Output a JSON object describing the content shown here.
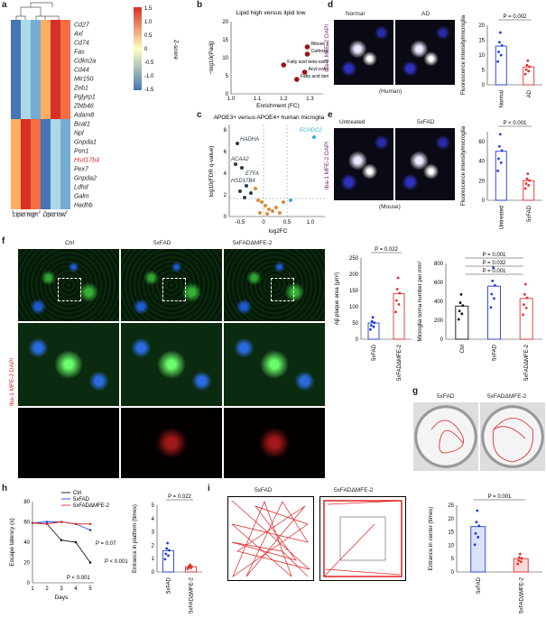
{
  "panel_letters": [
    "a",
    "b",
    "c",
    "d",
    "e",
    "f",
    "g",
    "h",
    "i"
  ],
  "heatmap": {
    "genes": [
      "Cd27",
      "Axl",
      "Cd74",
      "Fas",
      "Cdkn2a",
      "Cd44",
      "Mir150",
      "Zeb1",
      "Pglyrp1",
      "Zbtb46",
      "Adam8",
      "Bcat1",
      "Npl",
      "Gnpda1",
      "Pon1",
      "Hsd17b4",
      "Pex7",
      "Gnpda2",
      "Ldhd",
      "Galm",
      "Hadhb"
    ],
    "highlight_gene": "Hsd17b4",
    "highlight_color": "#d62728",
    "group_labels": [
      "Lipid high",
      "Lipid low"
    ],
    "colorbar_label": "Z-score",
    "colorbar_ticks": [
      "1.5",
      "1.0",
      "0.5",
      "0",
      "-0.5",
      "-1.0",
      "-1.5"
    ]
  },
  "panel_b": {
    "title": "Lipid high versus lipid low",
    "xlabel": "Enrichment (FC)",
    "ylabel": "−log10(Padj)",
    "xticks": [
      "1.0",
      "1.1",
      "1.2",
      "1.3"
    ],
    "yticks": [
      "0",
      "5",
      "10",
      "15",
      "20"
    ],
    "points": [
      {
        "x": 1.29,
        "y": 13,
        "label": "Ribose phosphate metabolic process"
      },
      {
        "x": 1.29,
        "y": 11,
        "label": "Carboxylic acid catabolic process"
      },
      {
        "x": 1.2,
        "y": 8,
        "label": "Fatty acid beta-oxidation"
      },
      {
        "x": 1.28,
        "y": 6,
        "label": "Acyl-coA metabolic process"
      },
      {
        "x": 1.25,
        "y": 4,
        "label": "Fatty acid derivative metabolic process"
      }
    ]
  },
  "panel_c": {
    "title": "APOE3+ versus APOE4+ human microglia",
    "xlabel": "log2FC",
    "ylabel": "log10(FDR q-value)",
    "xticks": [
      "-0.5",
      "0",
      "0.5",
      "1.0"
    ],
    "yticks": [
      "0",
      "2",
      "4",
      "6",
      "8"
    ],
    "labels": [
      "HADHA",
      "ACAA2",
      "ETFA",
      "HSD17B4",
      "ECHDC2"
    ]
  },
  "panel_d": {
    "conditions": [
      "Normal",
      "AD"
    ],
    "caption": "(Human)",
    "stain": "Iba-1 MFE-2 DAPI",
    "ylabel": "Fluorescence intensity/microglia",
    "pvalue": "P = 0.002",
    "yticks": [
      "0",
      "5",
      "10",
      "15",
      "20"
    ]
  },
  "panel_e": {
    "conditions": [
      "Untreated",
      "5xFAD"
    ],
    "caption": "(Mouse)",
    "stain": "Iba-1 MFE-2 DAPI",
    "ylabel": "Fluorescence intensity/microglia",
    "pvalue": "P < 0.001",
    "yticks": [
      "0",
      "20",
      "40",
      "60"
    ]
  },
  "panel_f": {
    "conditions": [
      "Ctrl",
      "5xFAD",
      "5xFADΔMFE-2"
    ],
    "stain": "Iba-1 MFE-2 DAPI",
    "plaque": {
      "ylabel": "Aβ plaque area (µm²)",
      "pvalue": "P = 0.022",
      "yticks": [
        "0",
        "50",
        "100",
        "150",
        "200",
        "250"
      ],
      "groups": [
        "5xFAD",
        "5xFADΔMFE-2"
      ]
    },
    "soma": {
      "ylabel": "Microglia soma number per mm²",
      "pvalues": [
        "P = 0.001",
        "P = 0.032",
        "P = 0.001"
      ],
      "yticks": [
        "0",
        "200",
        "400",
        "600",
        "800"
      ],
      "groups": [
        "Ctrl",
        "5xFAD",
        "5xFADΔMFE-2"
      ]
    }
  },
  "panel_g": {
    "conditions": [
      "5xFAD",
      "5xFADΔMFE-2"
    ]
  },
  "panel_h": {
    "legend": [
      "Ctrl",
      "5xFAD",
      "5xFADΔMFE-2"
    ],
    "ylabel": "Escape latency (s)",
    "xlabel": "Days",
    "xticks": [
      "1",
      "2",
      "3",
      "4",
      "5"
    ],
    "yticks": [
      "0",
      "20",
      "40",
      "60",
      "80"
    ],
    "pvalues": [
      "P = 0.07",
      "P < 0.001",
      "P < 0.001"
    ],
    "bar": {
      "ylabel": "Entrance in platform (times)",
      "pvalue": "P = 0.022",
      "yticks": [
        "0",
        "1",
        "2",
        "3",
        "4",
        "5"
      ],
      "groups": [
        "5xFAD",
        "5xFADΔMFE-2"
      ]
    }
  },
  "panel_i": {
    "conditions": [
      "5xFAD",
      "5xFADΔMFE-2"
    ],
    "bar": {
      "ylabel": "Entrance in center (times)",
      "pvalue": "P = 0.001",
      "yticks": [
        "0",
        "5",
        "10",
        "15",
        "20",
        "25"
      ],
      "groups": [
        "5xFAD",
        "5xFADΔMFE-2"
      ]
    }
  },
  "colors": {
    "ctrl": "#111111",
    "fad": "#1f3fd6",
    "mfe": "#e03030"
  },
  "chart_data": [
    {
      "type": "line",
      "x": [
        1,
        2,
        3,
        4,
        5
      ],
      "series": [
        {
          "name": "Ctrl",
          "values": [
            59,
            58,
            42,
            40,
            20
          ]
        },
        {
          "name": "5xFAD",
          "values": [
            59,
            60,
            60,
            58,
            52
          ]
        },
        {
          "name": "5xFADΔMFE-2",
          "values": [
            59,
            58,
            60,
            58,
            58
          ]
        }
      ],
      "xlabel": "Days",
      "ylabel": "Escape latency (s)",
      "ylim": [
        0,
        80
      ]
    },
    {
      "type": "bar",
      "categories": [
        "Normal",
        "AD"
      ],
      "values": [
        13,
        6
      ],
      "ylabel": "Fluorescence intensity/microglia",
      "ylim": [
        0,
        20
      ]
    },
    {
      "type": "bar",
      "categories": [
        "Untreated",
        "5xFAD"
      ],
      "values": [
        50,
        20
      ],
      "ylabel": "Fluorescence intensity/microglia",
      "ylim": [
        0,
        70
      ]
    },
    {
      "type": "bar",
      "categories": [
        "5xFAD",
        "5xFADΔMFE-2"
      ],
      "values": [
        50,
        140
      ],
      "ylabel": "Aβ plaque area (µm²)",
      "ylim": [
        0,
        250
      ]
    },
    {
      "type": "bar",
      "categories": [
        "Ctrl",
        "5xFAD",
        "5xFADΔMFE-2"
      ],
      "values": [
        350,
        560,
        430
      ],
      "ylabel": "Microglia soma number per mm²",
      "ylim": [
        0,
        800
      ]
    },
    {
      "type": "bar",
      "categories": [
        "5xFAD",
        "5xFADΔMFE-2"
      ],
      "values": [
        1.6,
        0.4
      ],
      "ylabel": "Entrance in platform (times)",
      "ylim": [
        0,
        5
      ]
    },
    {
      "type": "bar",
      "categories": [
        "5xFAD",
        "5xFADΔMFE-2"
      ],
      "values": [
        17,
        5
      ],
      "ylabel": "Entrance in center (times)",
      "ylim": [
        0,
        25
      ]
    }
  ]
}
